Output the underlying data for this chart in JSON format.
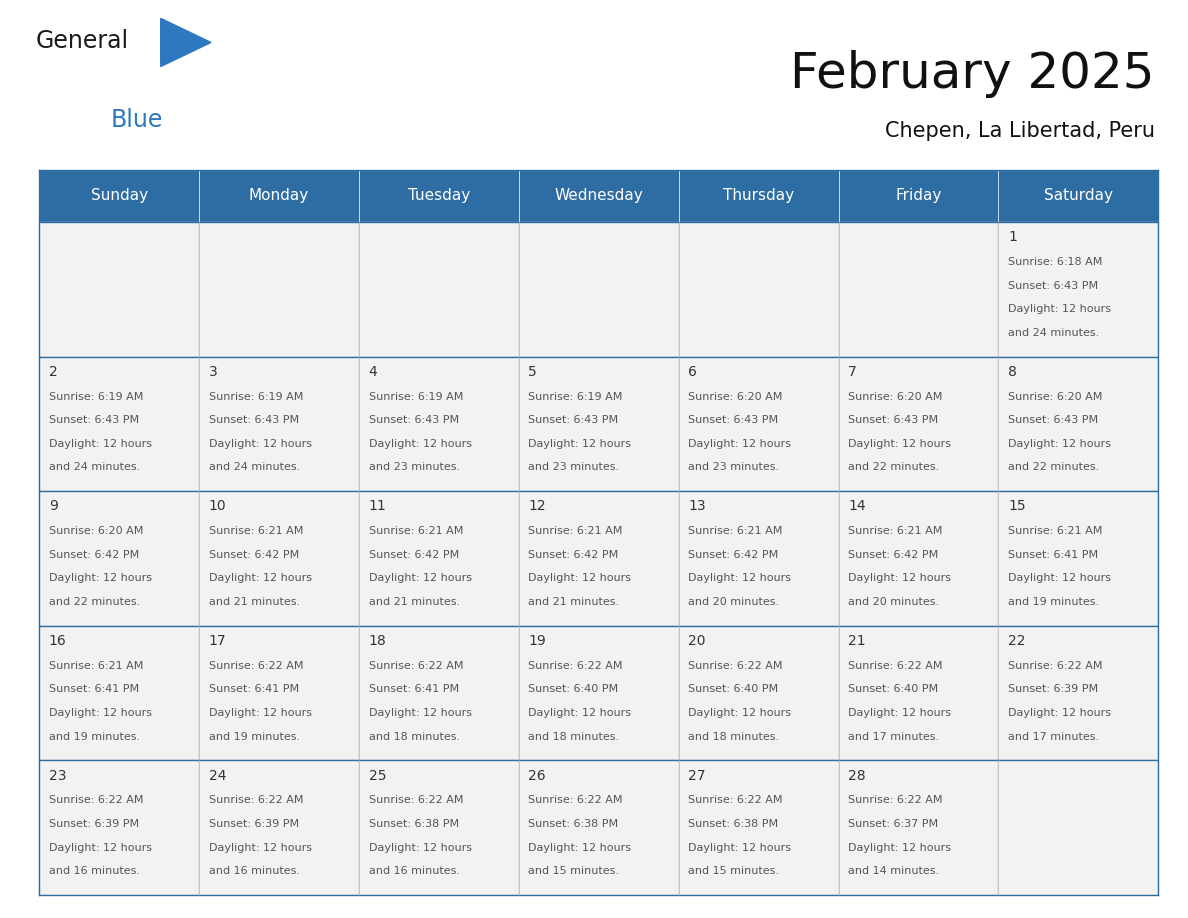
{
  "title": "February 2025",
  "subtitle": "Chepen, La Libertad, Peru",
  "days_of_week": [
    "Sunday",
    "Monday",
    "Tuesday",
    "Wednesday",
    "Thursday",
    "Friday",
    "Saturday"
  ],
  "header_bg_color": "#2E6DA4",
  "header_text_color": "#FFFFFF",
  "cell_bg_color": "#F2F2F2",
  "empty_cell_bg_color": "#F2F2F2",
  "border_color": "#2E6DA4",
  "cell_border_color": "#AAAAAA",
  "day_number_color": "#333333",
  "text_color": "#555555",
  "calendar": [
    [
      null,
      null,
      null,
      null,
      null,
      null,
      {
        "day": 1,
        "sunrise": "6:18 AM",
        "sunset": "6:43 PM",
        "daylight": "12 hours and 24 minutes."
      }
    ],
    [
      {
        "day": 2,
        "sunrise": "6:19 AM",
        "sunset": "6:43 PM",
        "daylight": "12 hours and 24 minutes."
      },
      {
        "day": 3,
        "sunrise": "6:19 AM",
        "sunset": "6:43 PM",
        "daylight": "12 hours and 24 minutes."
      },
      {
        "day": 4,
        "sunrise": "6:19 AM",
        "sunset": "6:43 PM",
        "daylight": "12 hours and 23 minutes."
      },
      {
        "day": 5,
        "sunrise": "6:19 AM",
        "sunset": "6:43 PM",
        "daylight": "12 hours and 23 minutes."
      },
      {
        "day": 6,
        "sunrise": "6:20 AM",
        "sunset": "6:43 PM",
        "daylight": "12 hours and 23 minutes."
      },
      {
        "day": 7,
        "sunrise": "6:20 AM",
        "sunset": "6:43 PM",
        "daylight": "12 hours and 22 minutes."
      },
      {
        "day": 8,
        "sunrise": "6:20 AM",
        "sunset": "6:43 PM",
        "daylight": "12 hours and 22 minutes."
      }
    ],
    [
      {
        "day": 9,
        "sunrise": "6:20 AM",
        "sunset": "6:42 PM",
        "daylight": "12 hours and 22 minutes."
      },
      {
        "day": 10,
        "sunrise": "6:21 AM",
        "sunset": "6:42 PM",
        "daylight": "12 hours and 21 minutes."
      },
      {
        "day": 11,
        "sunrise": "6:21 AM",
        "sunset": "6:42 PM",
        "daylight": "12 hours and 21 minutes."
      },
      {
        "day": 12,
        "sunrise": "6:21 AM",
        "sunset": "6:42 PM",
        "daylight": "12 hours and 21 minutes."
      },
      {
        "day": 13,
        "sunrise": "6:21 AM",
        "sunset": "6:42 PM",
        "daylight": "12 hours and 20 minutes."
      },
      {
        "day": 14,
        "sunrise": "6:21 AM",
        "sunset": "6:42 PM",
        "daylight": "12 hours and 20 minutes."
      },
      {
        "day": 15,
        "sunrise": "6:21 AM",
        "sunset": "6:41 PM",
        "daylight": "12 hours and 19 minutes."
      }
    ],
    [
      {
        "day": 16,
        "sunrise": "6:21 AM",
        "sunset": "6:41 PM",
        "daylight": "12 hours and 19 minutes."
      },
      {
        "day": 17,
        "sunrise": "6:22 AM",
        "sunset": "6:41 PM",
        "daylight": "12 hours and 19 minutes."
      },
      {
        "day": 18,
        "sunrise": "6:22 AM",
        "sunset": "6:41 PM",
        "daylight": "12 hours and 18 minutes."
      },
      {
        "day": 19,
        "sunrise": "6:22 AM",
        "sunset": "6:40 PM",
        "daylight": "12 hours and 18 minutes."
      },
      {
        "day": 20,
        "sunrise": "6:22 AM",
        "sunset": "6:40 PM",
        "daylight": "12 hours and 18 minutes."
      },
      {
        "day": 21,
        "sunrise": "6:22 AM",
        "sunset": "6:40 PM",
        "daylight": "12 hours and 17 minutes."
      },
      {
        "day": 22,
        "sunrise": "6:22 AM",
        "sunset": "6:39 PM",
        "daylight": "12 hours and 17 minutes."
      }
    ],
    [
      {
        "day": 23,
        "sunrise": "6:22 AM",
        "sunset": "6:39 PM",
        "daylight": "12 hours and 16 minutes."
      },
      {
        "day": 24,
        "sunrise": "6:22 AM",
        "sunset": "6:39 PM",
        "daylight": "12 hours and 16 minutes."
      },
      {
        "day": 25,
        "sunrise": "6:22 AM",
        "sunset": "6:38 PM",
        "daylight": "12 hours and 16 minutes."
      },
      {
        "day": 26,
        "sunrise": "6:22 AM",
        "sunset": "6:38 PM",
        "daylight": "12 hours and 15 minutes."
      },
      {
        "day": 27,
        "sunrise": "6:22 AM",
        "sunset": "6:38 PM",
        "daylight": "12 hours and 15 minutes."
      },
      {
        "day": 28,
        "sunrise": "6:22 AM",
        "sunset": "6:37 PM",
        "daylight": "12 hours and 14 minutes."
      },
      null
    ]
  ],
  "logo_text_general": "General",
  "logo_text_blue": "Blue",
  "logo_color_general": "#1a1a1a",
  "logo_color_blue": "#2E78C0",
  "logo_triangle_color": "#2E78C0",
  "title_fontsize": 36,
  "subtitle_fontsize": 15,
  "header_fontsize": 11,
  "day_num_fontsize": 10,
  "cell_text_fontsize": 8
}
